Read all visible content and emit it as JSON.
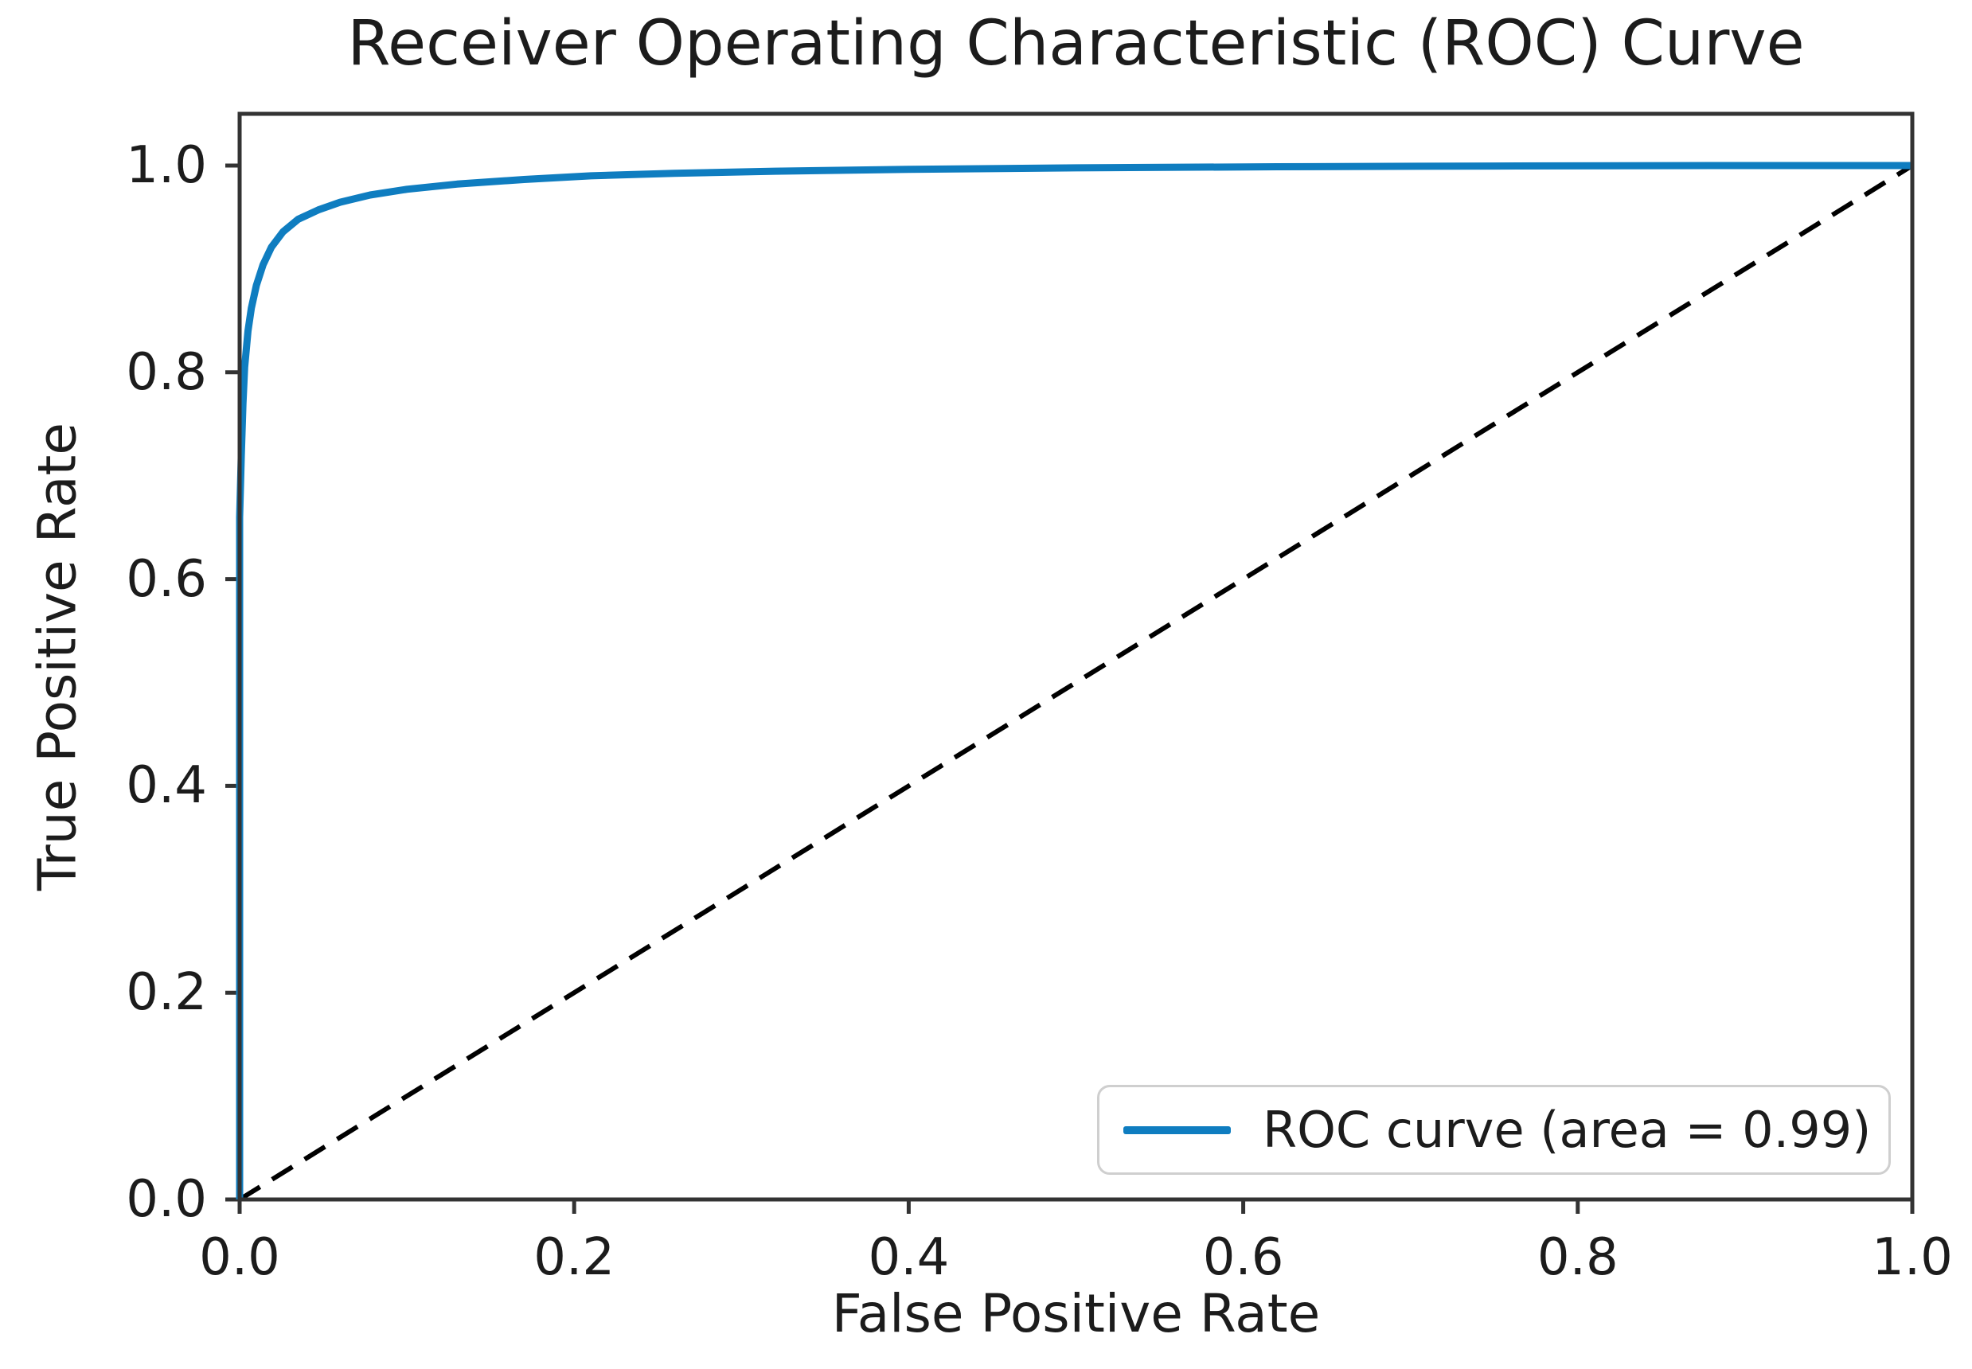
{
  "chart_data": {
    "type": "line",
    "title": "Receiver Operating Characteristic (ROC) Curve",
    "xlabel": "False Positive Rate",
    "ylabel": "True Positive Rate",
    "xlim": [
      0.0,
      1.0
    ],
    "ylim": [
      0.0,
      1.05
    ],
    "grid": false,
    "x_ticks": [
      0.0,
      0.2,
      0.4,
      0.6,
      0.8,
      1.0
    ],
    "x_tick_labels": [
      "0.0",
      "0.2",
      "0.4",
      "0.6",
      "0.8",
      "1.0"
    ],
    "y_ticks": [
      0.0,
      0.2,
      0.4,
      0.6,
      0.8,
      1.0
    ],
    "y_tick_labels": [
      "0.0",
      "0.2",
      "0.4",
      "0.6",
      "0.8",
      "1.0"
    ],
    "legend": {
      "position": "lower right",
      "label": "ROC curve (area = 0.99)"
    },
    "series": [
      {
        "name": "ROC curve",
        "color": "#0f7dc0",
        "style": "solid",
        "area": 0.99,
        "points": [
          [
            0.0,
            0.0
          ],
          [
            0.0,
            0.66
          ],
          [
            0.001,
            0.72
          ],
          [
            0.002,
            0.77
          ],
          [
            0.003,
            0.805
          ],
          [
            0.005,
            0.84
          ],
          [
            0.007,
            0.862
          ],
          [
            0.01,
            0.884
          ],
          [
            0.014,
            0.904
          ],
          [
            0.019,
            0.921
          ],
          [
            0.026,
            0.936
          ],
          [
            0.035,
            0.948
          ],
          [
            0.047,
            0.957
          ],
          [
            0.06,
            0.9645
          ],
          [
            0.078,
            0.9715
          ],
          [
            0.1,
            0.977
          ],
          [
            0.13,
            0.982
          ],
          [
            0.17,
            0.9865
          ],
          [
            0.21,
            0.99
          ],
          [
            0.26,
            0.9925
          ],
          [
            0.32,
            0.9945
          ],
          [
            0.4,
            0.9963
          ],
          [
            0.5,
            0.9977
          ],
          [
            0.62,
            0.9988
          ],
          [
            0.75,
            0.9995
          ],
          [
            0.88,
            1.0
          ],
          [
            1.0,
            1.0
          ]
        ]
      },
      {
        "name": "chance diagonal",
        "color": "#000000",
        "style": "dashed",
        "points": [
          [
            0.0,
            0.0
          ],
          [
            1.0,
            1.0
          ]
        ]
      }
    ],
    "colors": {
      "roc_line": "#0f7dc0",
      "diagonal": "#000000",
      "spine": "#333333",
      "text": "#1c1c1c",
      "legend_border": "#cfcfcf",
      "background": "#ffffff"
    }
  }
}
